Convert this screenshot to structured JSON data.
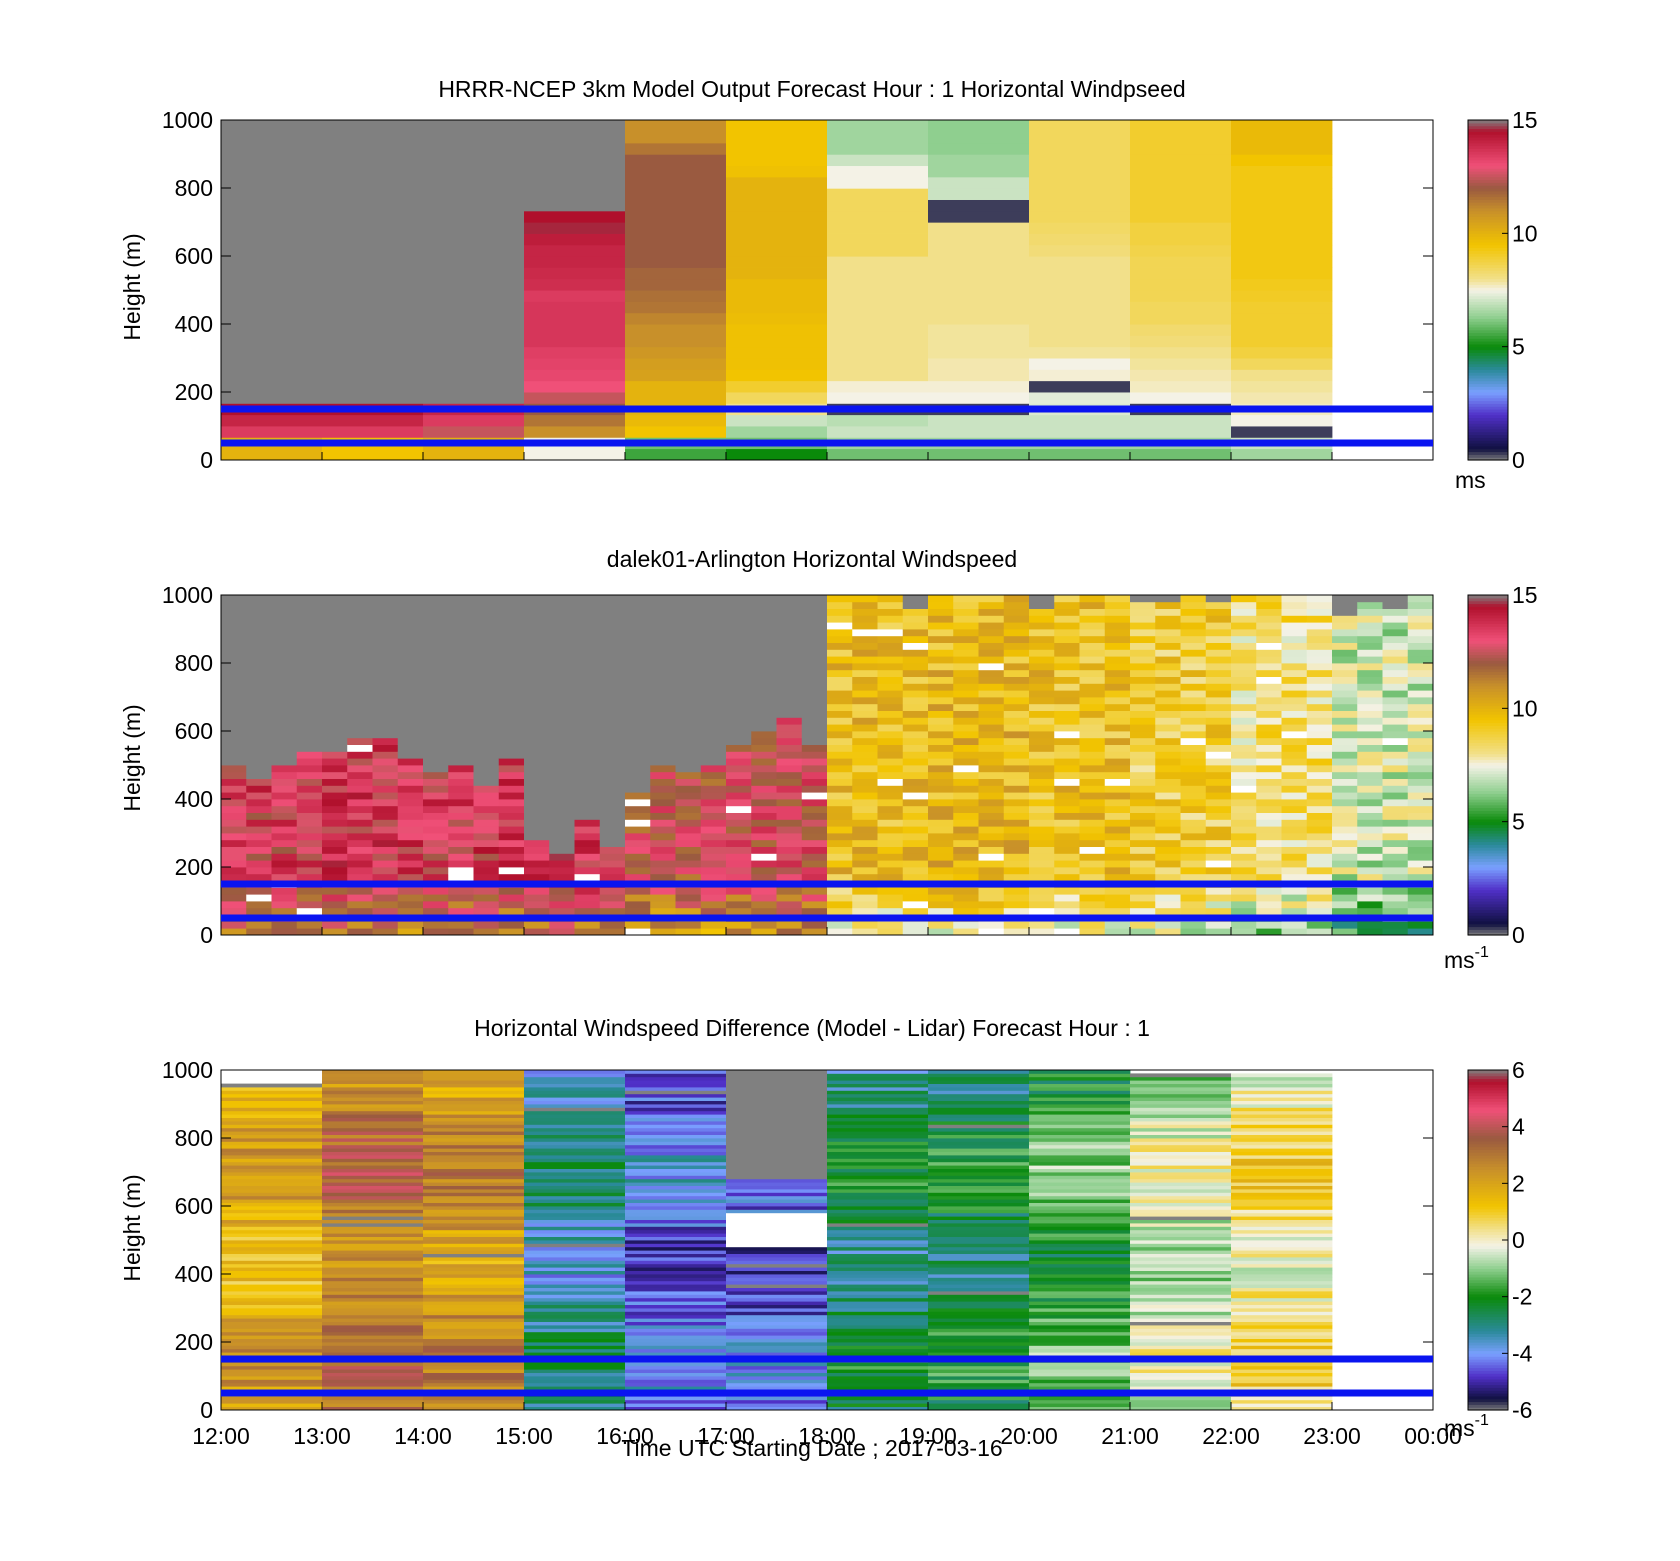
{
  "figure": {
    "xlabel": "Time UTC  Starting Date ; 2017-03-16",
    "x_ticks": [
      "12:00",
      "13:00",
      "14:00",
      "15:00",
      "16:00",
      "17:00",
      "18:00",
      "19:00",
      "20:00",
      "21:00",
      "22:00",
      "23:00",
      "00:00"
    ]
  },
  "colors": {
    "no_data": "#808080",
    "reference_lines": "#0a14f0",
    "windspeed_stops": [
      [
        0,
        "#808080"
      ],
      [
        0.5,
        "#101040"
      ],
      [
        2,
        "#5030c8"
      ],
      [
        3,
        "#7aa0ff"
      ],
      [
        4,
        "#2a8a9a"
      ],
      [
        5,
        "#0a8a0a"
      ],
      [
        6.3,
        "#8fcf8f"
      ],
      [
        7.5,
        "#f4f2e6"
      ],
      [
        8,
        "#f2e08a"
      ],
      [
        9.5,
        "#f2c400"
      ],
      [
        11,
        "#c8902a"
      ],
      [
        12,
        "#9a5a40"
      ],
      [
        13,
        "#f05078"
      ],
      [
        14.5,
        "#b0102c"
      ],
      [
        15,
        "#808080"
      ]
    ],
    "difference_stops": [
      [
        -6,
        "#808080"
      ],
      [
        -5.6,
        "#101040"
      ],
      [
        -4.8,
        "#5030c8"
      ],
      [
        -4,
        "#7aa0ff"
      ],
      [
        -3.2,
        "#2a8a9a"
      ],
      [
        -2,
        "#0a8a0a"
      ],
      [
        -1,
        "#8fcf8f"
      ],
      [
        -0.2,
        "#f4f2e6"
      ],
      [
        0.4,
        "#f2e08a"
      ],
      [
        1.2,
        "#f2c400"
      ],
      [
        2.5,
        "#c8902a"
      ],
      [
        3.6,
        "#9a5a40"
      ],
      [
        4.6,
        "#f05078"
      ],
      [
        5.6,
        "#b0102c"
      ],
      [
        6,
        "#808080"
      ]
    ]
  },
  "chart_data": [
    {
      "type": "heatmap",
      "title": "HRRR-NCEP 3km Model Output   Forecast Hour : 1 Horizontal Windpseed",
      "ylabel": "Height (m)",
      "xlim": [
        12,
        24
      ],
      "ylim": [
        0,
        1000
      ],
      "y_ticks": [
        "0",
        "200",
        "400",
        "600",
        "800",
        "1000"
      ],
      "colorbar": {
        "range": [
          0,
          15
        ],
        "ticks": [
          "0",
          "5",
          "10",
          "15"
        ],
        "unit": "ms",
        "unit_sup": ""
      },
      "reference_lines_m": [
        50,
        150
      ],
      "colorscale": "windspeed",
      "cell_height_m": 33.3,
      "columns": [
        {
          "start_hour": 12,
          "end_hour": 13,
          "levels": [
            10,
            10,
            13.5,
            14,
            14.5,
            15,
            15,
            15,
            15,
            15,
            15,
            15,
            15,
            15,
            15,
            15,
            15,
            15,
            15,
            15,
            15,
            15,
            15,
            15,
            15,
            15,
            15,
            15,
            15,
            15
          ]
        },
        {
          "start_hour": 13,
          "end_hour": 14,
          "levels": [
            9.5,
            9.5,
            13.5,
            14,
            14.5,
            15,
            15,
            15,
            15,
            15,
            15,
            15,
            15,
            15,
            15,
            15,
            15,
            15,
            15,
            15,
            15,
            15,
            15,
            15,
            15,
            15,
            15,
            15,
            15,
            15
          ]
        },
        {
          "start_hour": 14,
          "end_hour": 15,
          "levels": [
            10,
            10,
            12.5,
            13.5,
            14,
            15,
            15,
            15,
            15,
            15,
            15,
            15,
            15,
            15,
            15,
            15,
            15,
            15,
            15,
            15,
            15,
            15,
            15,
            15,
            15,
            15,
            15,
            15,
            15,
            15
          ]
        },
        {
          "start_hour": 15,
          "end_hour": 16,
          "levels": [
            7.5,
            7.5,
            11,
            11.5,
            12,
            12.5,
            13,
            13.2,
            13.3,
            13.4,
            13.6,
            13.6,
            13.6,
            13.6,
            13.5,
            13.8,
            13.9,
            14,
            14,
            14.2,
            14.6,
            14.5,
            15,
            15,
            15,
            15,
            15,
            15,
            15,
            15
          ]
        },
        {
          "start_hour": 16,
          "end_hour": 17,
          "levels": [
            5.5,
            6,
            9.5,
            9.8,
            10,
            10,
            10,
            10.5,
            10.6,
            10.8,
            11,
            11,
            11.2,
            11.5,
            11.6,
            11.8,
            11.8,
            12,
            12,
            12,
            12,
            12,
            12,
            12,
            12,
            12,
            12,
            11.5,
            11,
            11
          ]
        },
        {
          "start_hour": 17,
          "end_hour": 18,
          "levels": [
            5,
            6,
            6.5,
            7,
            8,
            8.5,
            9,
            9.5,
            9.6,
            9.6,
            9.6,
            9.6,
            9.7,
            9.8,
            9.8,
            9.8,
            10,
            10,
            10,
            10,
            10,
            10,
            10,
            10,
            10,
            9.6,
            9.5,
            9.5,
            9.5,
            9.5
          ]
        },
        {
          "start_hour": 18,
          "end_hour": 19,
          "levels": [
            6,
            6.5,
            7,
            6.8,
            0.3,
            7.5,
            7.6,
            8,
            8,
            8,
            8,
            8,
            8,
            8,
            8,
            8,
            8,
            8,
            8.5,
            8.5,
            8.5,
            8.5,
            8.5,
            8.5,
            7.5,
            7.5,
            7,
            6.5,
            6.5,
            6.5
          ]
        },
        {
          "start_hour": 19,
          "end_hour": 20,
          "levels": [
            6,
            6.5,
            7,
            7,
            0.3,
            7.5,
            7.6,
            7.8,
            7.8,
            7.9,
            7.9,
            7.9,
            8,
            8,
            8,
            8,
            8,
            8,
            8,
            8,
            8,
            0.3,
            0.3,
            7,
            7,
            6.5,
            6.5,
            6.3,
            6.3,
            6.3
          ]
        },
        {
          "start_hour": 20,
          "end_hour": 21,
          "levels": [
            6,
            6.5,
            7,
            7,
            7.2,
            7.3,
            0.3,
            7.6,
            7.5,
            7.9,
            8,
            8,
            8,
            8,
            8,
            8,
            8,
            8,
            8.2,
            8.3,
            8.4,
            8.5,
            8.5,
            8.5,
            8.5,
            8.5,
            8.5,
            8.5,
            8.5,
            8.5
          ]
        },
        {
          "start_hour": 21,
          "end_hour": 22,
          "levels": [
            6,
            6.5,
            7,
            7,
            0.3,
            7.5,
            7.7,
            7.8,
            7.9,
            8,
            8.2,
            8.3,
            8.5,
            8.5,
            8.6,
            8.6,
            8.6,
            8.6,
            8.7,
            8.8,
            8.8,
            9,
            9,
            9,
            9,
            9,
            9,
            9,
            9,
            9
          ]
        },
        {
          "start_hour": 22,
          "end_hour": 23,
          "levels": [
            6.5,
            7,
            0.3,
            7.5,
            7.7,
            7.8,
            7.9,
            8,
            8.5,
            8.8,
            9,
            9,
            9,
            9,
            9.1,
            9.2,
            9.3,
            9.3,
            9.3,
            9.3,
            9.3,
            9.3,
            9.3,
            9.3,
            9.3,
            9.3,
            9.5,
            9.8,
            9.8,
            9.8
          ]
        }
      ]
    },
    {
      "type": "heatmap",
      "title": "dalek01-Arlington  Horizontal Windspeed",
      "ylabel": "Height (m)",
      "xlim": [
        12,
        24
      ],
      "ylim": [
        0,
        1000
      ],
      "y_ticks": [
        "0",
        "200",
        "400",
        "600",
        "800",
        "1000"
      ],
      "colorbar": {
        "range": [
          0,
          15
        ],
        "ticks": [
          "0",
          "5",
          "10",
          "15"
        ],
        "unit": "ms",
        "unit_sup": "-1"
      },
      "reference_lines_m": [
        50,
        150
      ],
      "colorscale": "windspeed",
      "cell_height_m": 20,
      "profile_interval_h": 0.25,
      "hourly_mean_ms": [
        13.2,
        13.4,
        13.3,
        13.6,
        12.5,
        12.8,
        9.6,
        9.8,
        9.5,
        9.0,
        8.3,
        7.1
      ],
      "hourly_valid_top_m": [
        470,
        520,
        480,
        300,
        480,
        610,
        1000,
        1000,
        1000,
        1000,
        1000,
        1000
      ]
    },
    {
      "type": "heatmap",
      "title": "Horizontal Windspeed Difference (Model - Lidar) Forecast Hour : 1",
      "ylabel": "Height (m)",
      "xlim": [
        12,
        24
      ],
      "ylim": [
        0,
        1000
      ],
      "y_ticks": [
        "0",
        "200",
        "400",
        "600",
        "800",
        "1000"
      ],
      "colorbar": {
        "range": [
          -6,
          6
        ],
        "ticks": [
          "-6",
          "-4",
          "-2",
          "0",
          "2",
          "4",
          "6"
        ],
        "unit": "ms",
        "unit_sup": "-1"
      },
      "reference_lines_m": [
        50,
        150
      ],
      "colorscale": "difference",
      "cell_height_m": 10,
      "columns": [
        {
          "start_hour": 12,
          "end_hour": 13,
          "mean_diff": 1.8,
          "top_m": 960,
          "gray_above_m": null,
          "white_band_m": null
        },
        {
          "start_hour": 13,
          "end_hour": 14,
          "mean_diff": 3.0,
          "top_m": 1000,
          "gray_above_m": null,
          "white_band_m": null
        },
        {
          "start_hour": 14,
          "end_hour": 15,
          "mean_diff": 2.4,
          "top_m": 1000,
          "gray_above_m": null,
          "white_band_m": null
        },
        {
          "start_hour": 15,
          "end_hour": 16,
          "mean_diff": -3.2,
          "top_m": 1000,
          "gray_above_m": null,
          "white_band_m": null
        },
        {
          "start_hour": 16,
          "end_hour": 17,
          "mean_diff": -4.3,
          "top_m": 1000,
          "gray_above_m": null,
          "white_band_m": null
        },
        {
          "start_hour": 17,
          "end_hour": 18,
          "mean_diff": -4.5,
          "top_m": 1000,
          "gray_above_m": 680,
          "white_band_m": [
            480,
            580
          ]
        },
        {
          "start_hour": 18,
          "end_hour": 19,
          "mean_diff": -2.6,
          "top_m": 1000,
          "gray_above_m": null,
          "white_band_m": null
        },
        {
          "start_hour": 19,
          "end_hour": 20,
          "mean_diff": -2.4,
          "top_m": 1000,
          "gray_above_m": null,
          "white_band_m": null
        },
        {
          "start_hour": 20,
          "end_hour": 21,
          "mean_diff": -1.6,
          "top_m": 1000,
          "gray_above_m": null,
          "white_band_m": null
        },
        {
          "start_hour": 21,
          "end_hour": 22,
          "mean_diff": -0.5,
          "top_m": 990,
          "gray_above_m": null,
          "white_band_m": null
        },
        {
          "start_hour": 22,
          "end_hour": 23,
          "mean_diff": 0.5,
          "top_m": 990,
          "gray_above_m": null,
          "white_band_m": null
        }
      ]
    }
  ]
}
